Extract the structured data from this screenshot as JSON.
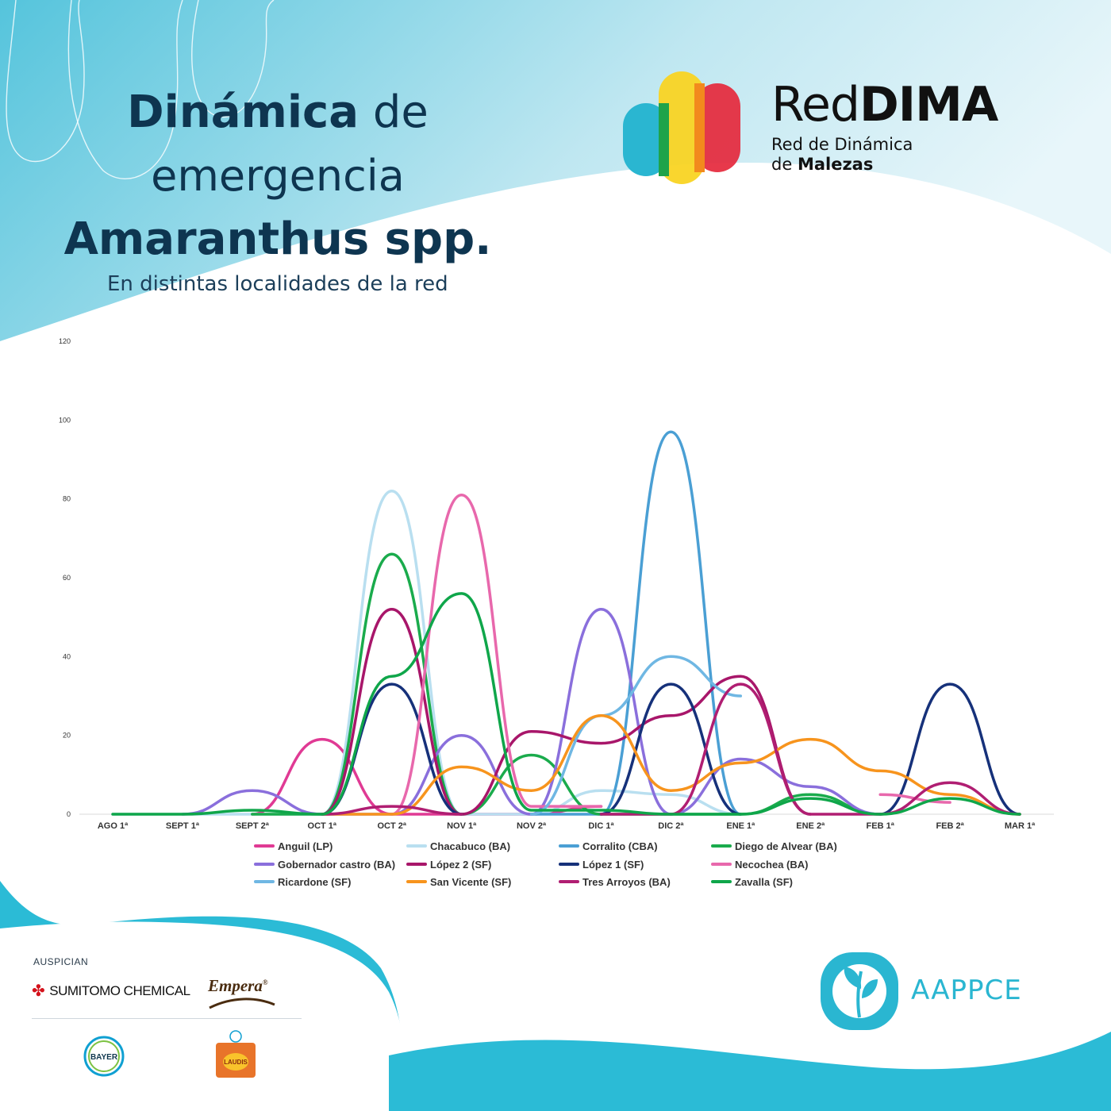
{
  "header": {
    "title_bold": "Dinámica",
    "title_rest": " de",
    "title_line2": "emergencia",
    "title_line3": "Amaranthus spp.",
    "subtitle": "En distintas localidades de la red"
  },
  "brand": {
    "name_regular": "Red",
    "name_bold": "DIMA",
    "sub_line1": "Red de Dinámica",
    "sub_line2_regular": "de ",
    "sub_line2_bold": "Malezas"
  },
  "sponsors": {
    "label": "AUSPICIAN",
    "sumitomo": "SUMITOMO CHEMICAL",
    "empera": "Empera",
    "empera_mark": "®",
    "bayer": "BAYER",
    "laudis": "LAUDIS"
  },
  "organization": {
    "name": "AAPPCE"
  },
  "chart_data": {
    "type": "line",
    "categories": [
      "AGO 1ª",
      "SEPT 1ª",
      "SEPT 2ª",
      "OCT 1ª",
      "OCT 2ª",
      "NOV 1ª",
      "NOV 2ª",
      "DIC 1ª",
      "DIC 2ª",
      "ENE 1ª",
      "ENE 2ª",
      "FEB 1ª",
      "FEB 2ª",
      "MAR 1ª"
    ],
    "y_ticks": [
      "0",
      "20",
      "40",
      "60",
      "80",
      "100",
      "120"
    ],
    "ylim": [
      0,
      120
    ],
    "grid": false,
    "legend_position": "bottom",
    "smooth": true,
    "series": [
      {
        "name": "Anguil (LP)",
        "color": "#e03a94",
        "values": [
          null,
          null,
          0,
          19,
          0,
          0,
          0,
          2,
          null,
          null,
          null,
          null,
          null,
          null
        ]
      },
      {
        "name": "Chacabuco (BA)",
        "color": "#b9dff0",
        "values": [
          0,
          0,
          0,
          0,
          82,
          0,
          0,
          6,
          5,
          0,
          null,
          null,
          3,
          null
        ]
      },
      {
        "name": "Corralito (CBA)",
        "color": "#4a9fd4",
        "values": [
          null,
          null,
          null,
          null,
          null,
          null,
          0,
          0,
          97,
          0,
          null,
          null,
          null,
          null
        ]
      },
      {
        "name": "Diego de Alvear (BA)",
        "color": "#1aab4c",
        "values": [
          null,
          null,
          0,
          0,
          66,
          0,
          15,
          0,
          0,
          0,
          5,
          0,
          null,
          null
        ]
      },
      {
        "name": "Gobernador castro (BA)",
        "color": "#8a6fdc",
        "values": [
          null,
          0,
          6,
          0,
          0,
          20,
          0,
          52,
          0,
          14,
          7,
          0,
          null,
          null
        ]
      },
      {
        "name": "López 2 (SF)",
        "color": "#a8166a",
        "values": [
          null,
          null,
          null,
          0,
          52,
          0,
          21,
          18,
          25,
          35,
          0,
          null,
          null,
          null
        ]
      },
      {
        "name": "López 1 (SF)",
        "color": "#16317a",
        "values": [
          null,
          null,
          null,
          0,
          33,
          0,
          null,
          0,
          33,
          0,
          null,
          0,
          33,
          0
        ]
      },
      {
        "name": "Necochea (BA)",
        "color": "#e868ac",
        "values": [
          null,
          null,
          null,
          null,
          0,
          81,
          2,
          2,
          null,
          null,
          null,
          5,
          3,
          null
        ]
      },
      {
        "name": "Ricardone (SF)",
        "color": "#6fb7e3",
        "values": [
          null,
          null,
          null,
          null,
          null,
          null,
          0,
          25,
          40,
          30,
          null,
          null,
          null,
          null
        ]
      },
      {
        "name": "San Vicente (SF)",
        "color": "#f7941d",
        "values": [
          null,
          null,
          null,
          0,
          0,
          12,
          6,
          25,
          6,
          13,
          19,
          11,
          5,
          0
        ]
      },
      {
        "name": "Tres Arroyos (BA)",
        "color": "#b01e72",
        "values": [
          null,
          null,
          null,
          0,
          2,
          0,
          null,
          0,
          0,
          33,
          0,
          0,
          8,
          0
        ]
      },
      {
        "name": "Zavalla (SF)",
        "color": "#0fa64a",
        "values": [
          0,
          0,
          1,
          0,
          35,
          56,
          1,
          1,
          0,
          0,
          4,
          0,
          4,
          0
        ]
      }
    ]
  }
}
